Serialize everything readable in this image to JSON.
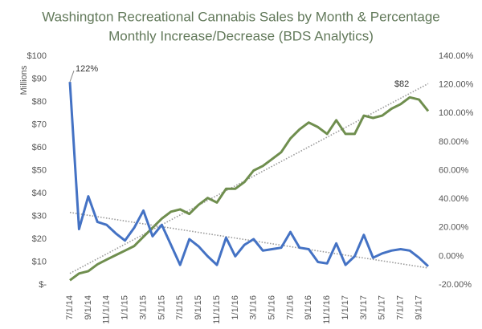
{
  "chart_data": {
    "type": "line",
    "title": "Washington Recreational Cannabis Sales by Month & Percentage",
    "subtitle": "Monthly Increase/Decrease  (BDS Analytics)",
    "y_label": "Millions",
    "categories": [
      "7/1/14",
      null,
      "9/1/14",
      null,
      "11/1/14",
      null,
      "1/1/15",
      null,
      "3/1/15",
      null,
      "5/1/15",
      null,
      "7/1/15",
      null,
      "9/1/15",
      null,
      "11/1/15",
      null,
      "1/1/16",
      null,
      "3/1/16",
      null,
      "5/1/16",
      null,
      "7/1/16",
      null,
      "9/1/16",
      null,
      "11/1/16",
      null,
      "1/1/17",
      null,
      "3/1/17",
      null,
      "5/1/17",
      null,
      "7/1/17",
      null,
      "9/1/17",
      null
    ],
    "series": [
      {
        "color": "#6f8e4e",
        "trendline": true,
        "values": [
          2,
          5,
          6,
          9,
          11,
          13,
          15,
          17,
          21,
          25,
          29,
          32,
          33,
          31,
          35,
          38,
          36,
          42,
          42,
          45,
          50,
          52,
          55,
          58,
          64,
          68,
          71,
          69,
          66,
          72,
          66,
          66,
          74,
          73,
          74,
          77,
          79,
          82,
          81,
          76
        ],
        "value_labels": [
          null,
          null,
          null,
          null,
          null,
          null,
          null,
          null,
          null,
          null,
          null,
          null,
          null,
          null,
          null,
          null,
          null,
          null,
          null,
          null,
          null,
          null,
          null,
          null,
          null,
          null,
          null,
          null,
          null,
          null,
          null,
          null,
          null,
          null,
          null,
          null,
          null,
          "$82",
          null,
          null
        ]
      },
      {
        "color": "#4472c4",
        "axis": "y2",
        "trendline": true,
        "values": [
          122,
          19,
          42,
          24,
          22,
          16,
          11,
          20,
          32,
          14,
          22,
          8,
          -6,
          12,
          7,
          0,
          -6,
          13,
          0,
          8,
          12,
          4,
          5,
          6,
          17,
          6,
          5,
          -4,
          -5,
          9,
          -6,
          0,
          15,
          -1,
          2,
          4,
          5,
          4,
          -1,
          -7
        ],
        "value_labels": [
          "122%",
          null,
          null,
          null,
          null,
          null,
          null,
          null,
          null,
          null,
          null,
          null,
          null,
          null,
          null,
          null,
          null,
          null,
          null,
          null,
          null,
          null,
          null,
          null,
          null,
          null,
          null,
          null,
          null,
          null,
          null,
          null,
          null,
          null,
          null,
          null,
          null,
          null,
          null,
          null
        ]
      }
    ],
    "ylim": [
      0,
      100
    ],
    "yticks": [
      {
        "value": 0,
        "label": "$-"
      },
      {
        "value": 10,
        "label": "$10"
      },
      {
        "value": 20,
        "label": "$20"
      },
      {
        "value": 30,
        "label": "$30"
      },
      {
        "value": 40,
        "label": "$40"
      },
      {
        "value": 50,
        "label": "$50"
      },
      {
        "value": 60,
        "label": "$60"
      },
      {
        "value": 70,
        "label": "$70"
      },
      {
        "value": 80,
        "label": "$80"
      },
      {
        "value": 90,
        "label": "$90"
      },
      {
        "value": 100,
        "label": "$100"
      }
    ],
    "y2lim": [
      -20,
      140
    ],
    "y2ticks": [
      {
        "value": -20,
        "label": "-20.00%"
      },
      {
        "value": 0,
        "label": "0.00%"
      },
      {
        "value": 20,
        "label": "20.00%"
      },
      {
        "value": 40,
        "label": "40.00%"
      },
      {
        "value": 60,
        "label": "60.00%"
      },
      {
        "value": 80,
        "label": "80.00%"
      },
      {
        "value": 100,
        "label": "100.00%"
      },
      {
        "value": 120,
        "label": "120.00%"
      },
      {
        "value": 140,
        "label": "140.00%"
      }
    ],
    "grid": false
  }
}
